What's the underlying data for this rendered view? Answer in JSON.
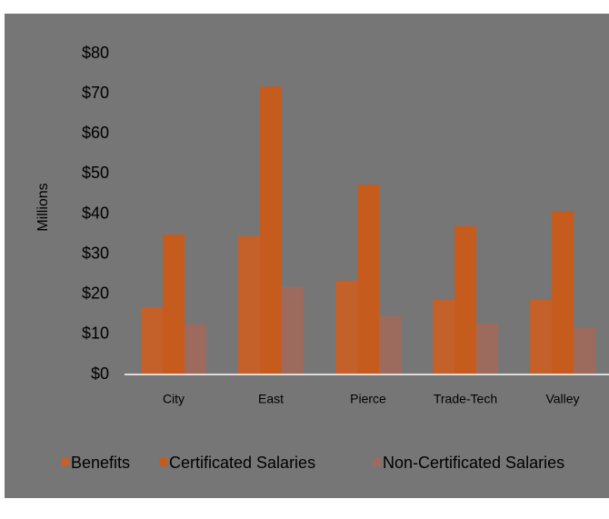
{
  "chart_data": {
    "type": "bar",
    "y_label": "Millions",
    "categories": [
      "City",
      "East",
      "Pierce",
      "Trade-Tech",
      "Valley"
    ],
    "series": [
      {
        "name": "Benefits",
        "color": "#c4602a",
        "values": [
          16.8,
          34.5,
          23.4,
          18.6,
          18.6
        ]
      },
      {
        "name": "Certificated Salaries",
        "color": "#c65b1e",
        "values": [
          34.9,
          71.8,
          47.3,
          37,
          40.7
        ]
      },
      {
        "name": "Non-Certificated Salaries",
        "color": "#9c6b5e",
        "values": [
          12.5,
          21.8,
          14.5,
          12.7,
          11.8
        ]
      }
    ],
    "ylim": [
      0,
      80
    ],
    "yticks": [
      {
        "value": 0,
        "label": "$0"
      },
      {
        "value": 10,
        "label": "$10"
      },
      {
        "value": 20,
        "label": "$20"
      },
      {
        "value": 30,
        "label": "$30"
      },
      {
        "value": 40,
        "label": "$40"
      },
      {
        "value": 50,
        "label": "$50"
      },
      {
        "value": 60,
        "label": "$60"
      },
      {
        "value": 70,
        "label": "$70"
      },
      {
        "value": 80,
        "label": "$80"
      }
    ],
    "grid": false,
    "legend": "bottom"
  }
}
